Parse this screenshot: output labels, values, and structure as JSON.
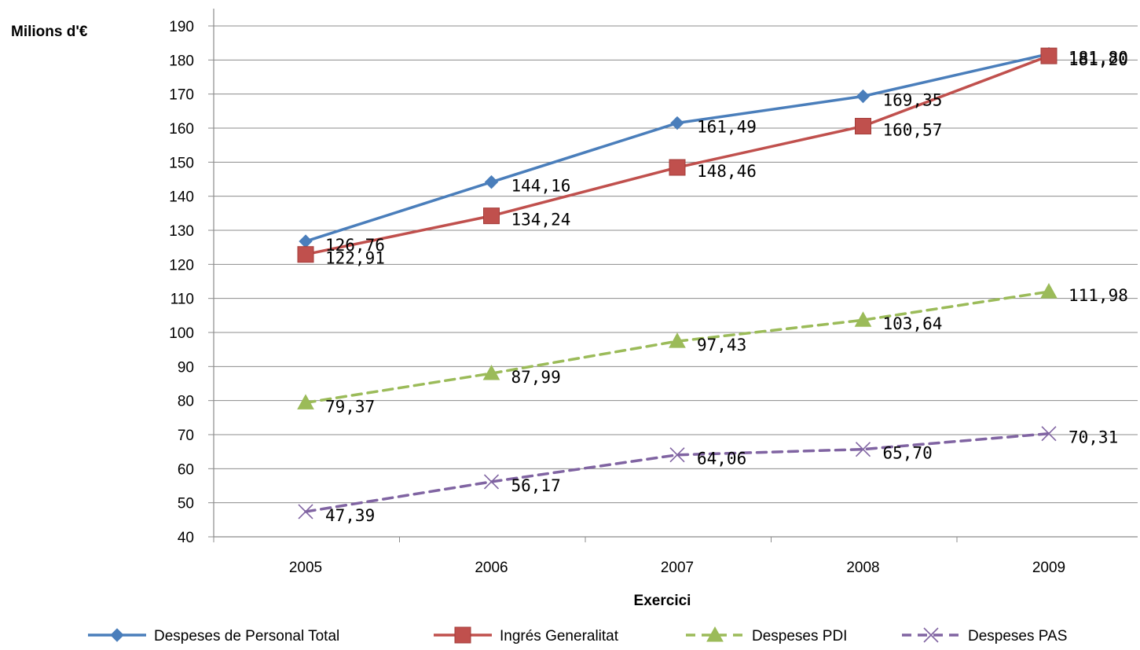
{
  "chart_data": {
    "type": "line",
    "title": "",
    "ylabel": "Milions d'€",
    "xlabel": "Exercici",
    "ylim": [
      40,
      190
    ],
    "yticks": [
      40,
      50,
      60,
      70,
      80,
      90,
      100,
      110,
      120,
      130,
      140,
      150,
      160,
      170,
      180,
      190
    ],
    "categories": [
      "2005",
      "2006",
      "2007",
      "2008",
      "2009"
    ],
    "grid": true,
    "legend_position": "bottom",
    "series": [
      {
        "name": "Despeses de Personal Total",
        "values": [
          126.76,
          144.16,
          161.49,
          169.35,
          181.8
        ],
        "labels": [
          "126,76",
          "144,16",
          "161,49",
          "169,35",
          "181,80"
        ],
        "color": "#4A7EBB",
        "marker": "diamond",
        "dashed": false
      },
      {
        "name": "Ingrés Generalitat",
        "values": [
          122.91,
          134.24,
          148.46,
          160.57,
          181.2
        ],
        "labels": [
          "122,91",
          "134,24",
          "148,46",
          "160,57",
          "181,20"
        ],
        "color": "#C0504D",
        "marker": "square",
        "dashed": false
      },
      {
        "name": "Despeses PDI",
        "values": [
          79.37,
          87.99,
          97.43,
          103.64,
          111.98
        ],
        "labels": [
          "79,37",
          "87,99",
          "97,43",
          "103,64",
          "111,98"
        ],
        "color": "#9BBB59",
        "marker": "triangle",
        "dashed": true
      },
      {
        "name": "Despeses PAS",
        "values": [
          47.39,
          56.17,
          64.06,
          65.7,
          70.31
        ],
        "labels": [
          "47,39",
          "56,17",
          "64,06",
          "65,70",
          "70,31"
        ],
        "color": "#8064A2",
        "marker": "x",
        "dashed": true
      }
    ]
  }
}
